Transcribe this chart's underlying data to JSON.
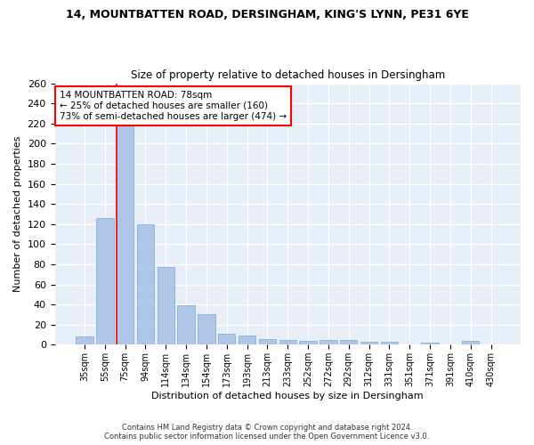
{
  "title": "14, MOUNTBATTEN ROAD, DERSINGHAM, KING'S LYNN, PE31 6YE",
  "subtitle": "Size of property relative to detached houses in Dersingham",
  "xlabel": "Distribution of detached houses by size in Dersingham",
  "ylabel": "Number of detached properties",
  "bar_color": "#aec6e8",
  "bar_edge_color": "#7ba8d0",
  "categories": [
    "35sqm",
    "55sqm",
    "75sqm",
    "94sqm",
    "114sqm",
    "134sqm",
    "154sqm",
    "173sqm",
    "193sqm",
    "213sqm",
    "233sqm",
    "252sqm",
    "272sqm",
    "292sqm",
    "312sqm",
    "331sqm",
    "351sqm",
    "371sqm",
    "391sqm",
    "410sqm",
    "430sqm"
  ],
  "values": [
    8,
    126,
    219,
    120,
    77,
    39,
    30,
    11,
    9,
    6,
    5,
    4,
    5,
    5,
    3,
    3,
    0,
    2,
    0,
    4,
    0
  ],
  "red_line_index": 2,
  "annotation_title": "14 MOUNTBATTEN ROAD: 78sqm",
  "annotation_line1": "← 25% of detached houses are smaller (160)",
  "annotation_line2": "73% of semi-detached houses are larger (474) →",
  "footnote1": "Contains HM Land Registry data © Crown copyright and database right 2024.",
  "footnote2": "Contains public sector information licensed under the Open Government Licence v3.0.",
  "ylim": [
    0,
    260
  ],
  "yticks": [
    0,
    20,
    40,
    60,
    80,
    100,
    120,
    140,
    160,
    180,
    200,
    220,
    240,
    260
  ],
  "background_color": "#e8eef7"
}
